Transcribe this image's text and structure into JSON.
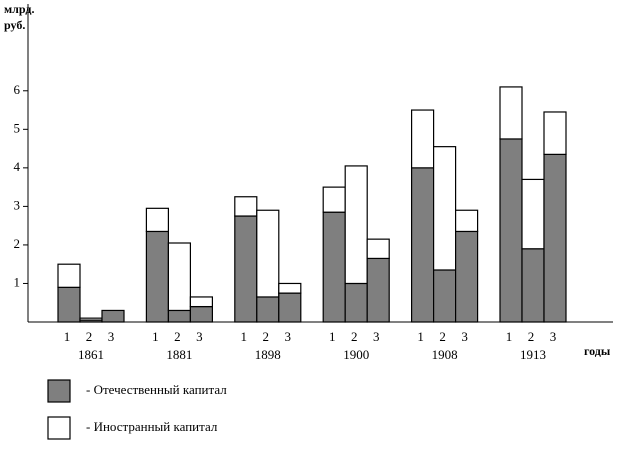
{
  "chart_data": {
    "type": "stacked-bar",
    "y_label": [
      "млрд.",
      "руб."
    ],
    "x_label": "годы",
    "groups": [
      "1861",
      "1881",
      "1898",
      "1900",
      "1908",
      "1913"
    ],
    "subcategories": [
      "1",
      "2",
      "3"
    ],
    "series": [
      {
        "name": "- Отечественный капитал",
        "color": "#7f7f7f",
        "values": [
          0.9,
          0.05,
          0.3,
          2.35,
          0.3,
          0.4,
          2.75,
          0.65,
          0.75,
          2.85,
          1.0,
          1.65,
          4.0,
          1.35,
          2.35,
          4.75,
          1.9,
          4.35
        ]
      },
      {
        "name": "- Иностранный капитал",
        "color": "#ffffff",
        "values": [
          0.6,
          0.05,
          0,
          0.6,
          1.75,
          0.25,
          0.5,
          2.25,
          0.25,
          0.65,
          3.05,
          0.5,
          1.5,
          3.2,
          0.55,
          1.35,
          1.8,
          1.1
        ]
      }
    ],
    "ylim": [
      0,
      8.2
    ],
    "yticks": [
      1,
      2,
      3,
      4,
      5,
      6
    ]
  }
}
